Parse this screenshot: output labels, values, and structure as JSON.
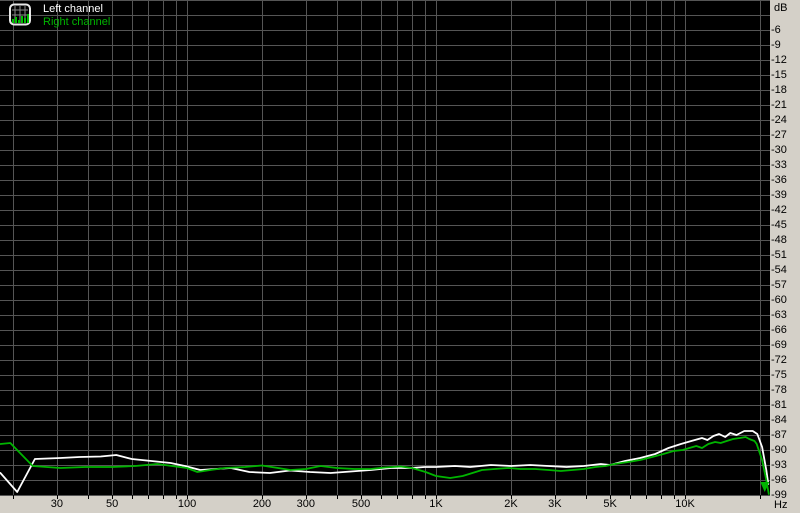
{
  "window": {
    "corner_top_label": "dB",
    "corner_bottom_label": "Hz"
  },
  "colors": {
    "plot_background": "#000000",
    "grid": "#555555",
    "axis_strip": "#d4d0c8",
    "axis_text": "#000000",
    "tick": "#000000",
    "left_channel": "#ffffff",
    "right_channel": "#00b400"
  },
  "legend": {
    "icon": "spectrum-analyzer-icon",
    "items": [
      {
        "label": "Left channel",
        "color": "#ffffff"
      },
      {
        "label": "Right channel",
        "color": "#00b400"
      }
    ]
  },
  "chart_data": {
    "type": "line",
    "title": "",
    "xlabel": "Hz",
    "ylabel": "dB",
    "x_axis": {
      "unit": "Hz",
      "scale": "log",
      "range_hz": [
        17.8,
        21700
      ],
      "grid_frequencies": [
        20,
        30,
        40,
        50,
        60,
        70,
        80,
        90,
        100,
        200,
        300,
        400,
        500,
        600,
        700,
        800,
        900,
        1000,
        2000,
        3000,
        4000,
        5000,
        6000,
        7000,
        8000,
        9000,
        10000,
        20000
      ],
      "tick_labels": [
        {
          "hz": 30,
          "label": "30"
        },
        {
          "hz": 50,
          "label": "50"
        },
        {
          "hz": 100,
          "label": "100"
        },
        {
          "hz": 200,
          "label": "200"
        },
        {
          "hz": 300,
          "label": "300"
        },
        {
          "hz": 500,
          "label": "500"
        },
        {
          "hz": 1000,
          "label": "1K"
        },
        {
          "hz": 2000,
          "label": "2K"
        },
        {
          "hz": 3000,
          "label": "3K"
        },
        {
          "hz": 5000,
          "label": "5K"
        },
        {
          "hz": 10000,
          "label": "10K"
        }
      ]
    },
    "y_axis": {
      "unit": "dB",
      "scale": "linear",
      "range_db": [
        0,
        -99
      ],
      "grid_step_db": 3,
      "tick_labels": [
        -6,
        -9,
        -12,
        -15,
        -18,
        -21,
        -24,
        -27,
        -30,
        -33,
        -36,
        -39,
        -42,
        -45,
        -48,
        -51,
        -54,
        -57,
        -60,
        -63,
        -66,
        -69,
        -72,
        -75,
        -78,
        -81,
        -84,
        -87,
        -90,
        -93,
        -96,
        -99
      ]
    },
    "legend_position": "top-left",
    "grid": true,
    "series": [
      {
        "name": "Left channel",
        "color": "#ffffff",
        "points": [
          [
            17.8,
            -94.6
          ],
          [
            20.8,
            -98.4
          ],
          [
            24.5,
            -91.8
          ],
          [
            31,
            -91.6
          ],
          [
            37,
            -91.4
          ],
          [
            45,
            -91.3
          ],
          [
            52,
            -91.0
          ],
          [
            60,
            -91.8
          ],
          [
            72,
            -92.2
          ],
          [
            86,
            -92.6
          ],
          [
            98,
            -93.2
          ],
          [
            113,
            -94.0
          ],
          [
            130,
            -93.8
          ],
          [
            150,
            -93.6
          ],
          [
            178,
            -94.4
          ],
          [
            215,
            -94.6
          ],
          [
            259,
            -94.1
          ],
          [
            312,
            -94.4
          ],
          [
            377,
            -94.6
          ],
          [
            454,
            -94.3
          ],
          [
            547,
            -94.0
          ],
          [
            660,
            -93.6
          ],
          [
            795,
            -93.6
          ],
          [
            900,
            -93.4
          ],
          [
            1000,
            -93.4
          ],
          [
            1190,
            -93.2
          ],
          [
            1370,
            -93.4
          ],
          [
            1660,
            -93.0
          ],
          [
            2000,
            -93.2
          ],
          [
            2390,
            -93.0
          ],
          [
            2830,
            -93.2
          ],
          [
            3340,
            -93.4
          ],
          [
            3920,
            -93.2
          ],
          [
            4590,
            -92.8
          ],
          [
            5000,
            -93.0
          ],
          [
            5740,
            -92.2
          ],
          [
            6600,
            -91.6
          ],
          [
            7590,
            -90.8
          ],
          [
            8580,
            -89.6
          ],
          [
            9620,
            -88.8
          ],
          [
            10600,
            -88.2
          ],
          [
            11700,
            -87.6
          ],
          [
            12300,
            -88.0
          ],
          [
            13000,
            -87.2
          ],
          [
            13700,
            -86.8
          ],
          [
            14500,
            -87.4
          ],
          [
            15200,
            -86.6
          ],
          [
            16100,
            -87.0
          ],
          [
            17300,
            -86.2
          ],
          [
            18700,
            -86.2
          ],
          [
            19500,
            -86.8
          ],
          [
            20400,
            -89.4
          ],
          [
            21200,
            -94.0
          ],
          [
            21600,
            -96.8
          ]
        ]
      },
      {
        "name": "Right channel",
        "color": "#00b400",
        "points": [
          [
            17.8,
            -88.8
          ],
          [
            19.5,
            -88.6
          ],
          [
            24,
            -93.2
          ],
          [
            31,
            -93.6
          ],
          [
            39,
            -93.4
          ],
          [
            50,
            -93.4
          ],
          [
            62,
            -93.2
          ],
          [
            76,
            -92.8
          ],
          [
            87,
            -93.2
          ],
          [
            100,
            -93.6
          ],
          [
            110,
            -94.4
          ],
          [
            124,
            -94.0
          ],
          [
            142,
            -93.6
          ],
          [
            171,
            -93.4
          ],
          [
            200,
            -93.1
          ],
          [
            232,
            -93.6
          ],
          [
            260,
            -94.0
          ],
          [
            300,
            -93.8
          ],
          [
            344,
            -93.2
          ],
          [
            400,
            -93.6
          ],
          [
            470,
            -93.8
          ],
          [
            547,
            -93.8
          ],
          [
            625,
            -93.5
          ],
          [
            720,
            -93.3
          ],
          [
            800,
            -93.6
          ],
          [
            908,
            -94.4
          ],
          [
            1000,
            -95.2
          ],
          [
            1140,
            -95.6
          ],
          [
            1280,
            -95.2
          ],
          [
            1400,
            -94.6
          ],
          [
            1530,
            -94.0
          ],
          [
            1720,
            -93.8
          ],
          [
            1950,
            -93.6
          ],
          [
            2180,
            -93.8
          ],
          [
            2500,
            -93.8
          ],
          [
            2830,
            -94.0
          ],
          [
            3170,
            -94.2
          ],
          [
            3530,
            -94.0
          ],
          [
            3920,
            -93.8
          ],
          [
            4370,
            -93.4
          ],
          [
            4800,
            -93.2
          ],
          [
            5220,
            -92.8
          ],
          [
            5910,
            -92.4
          ],
          [
            6600,
            -92.0
          ],
          [
            7380,
            -91.4
          ],
          [
            8180,
            -90.8
          ],
          [
            8990,
            -90.2
          ],
          [
            9790,
            -90.0
          ],
          [
            10400,
            -89.6
          ],
          [
            11100,
            -89.2
          ],
          [
            11700,
            -89.6
          ],
          [
            12400,
            -88.8
          ],
          [
            13200,
            -88.4
          ],
          [
            13900,
            -88.6
          ],
          [
            14700,
            -88.2
          ],
          [
            15600,
            -87.8
          ],
          [
            16600,
            -87.6
          ],
          [
            17500,
            -87.4
          ],
          [
            18100,
            -87.8
          ],
          [
            19000,
            -88.2
          ],
          [
            19400,
            -88.8
          ],
          [
            20400,
            -92.0
          ],
          [
            21200,
            -96.0
          ],
          [
            21700,
            -98.8
          ]
        ],
        "end_arrow": {
          "hz": 20900,
          "db": -97.4
        }
      }
    ]
  }
}
